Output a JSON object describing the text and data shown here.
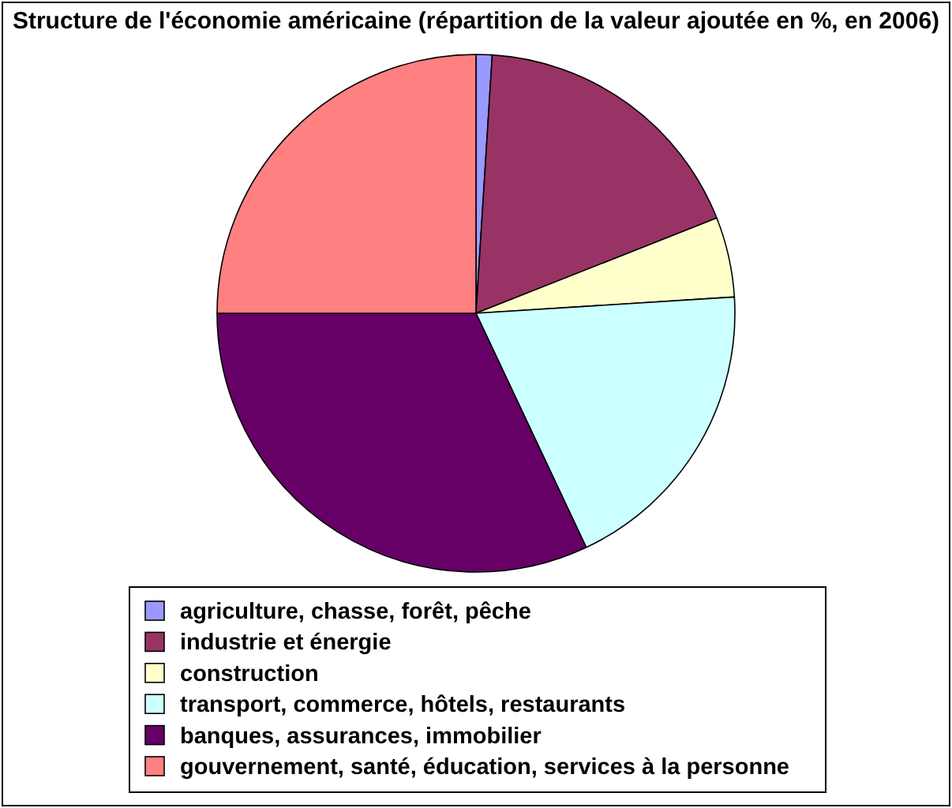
{
  "chart_data": {
    "type": "pie",
    "title": "Structure de l'économie américaine (répartition de la valeur ajoutée en %, en 2006)",
    "categories": [
      "agriculture, chasse, forêt, pêche",
      "industrie et énergie",
      "construction",
      "transport, commerce, hôtels, restaurants",
      "banques, assurances, immobilier",
      "gouvernement, santé, éducation, services à la personne"
    ],
    "values": [
      1,
      18,
      5,
      19,
      32,
      25
    ],
    "colors": [
      "#9999ff",
      "#993366",
      "#ffffcc",
      "#ccffff",
      "#660066",
      "#ff8080"
    ],
    "legend": "bottom"
  }
}
